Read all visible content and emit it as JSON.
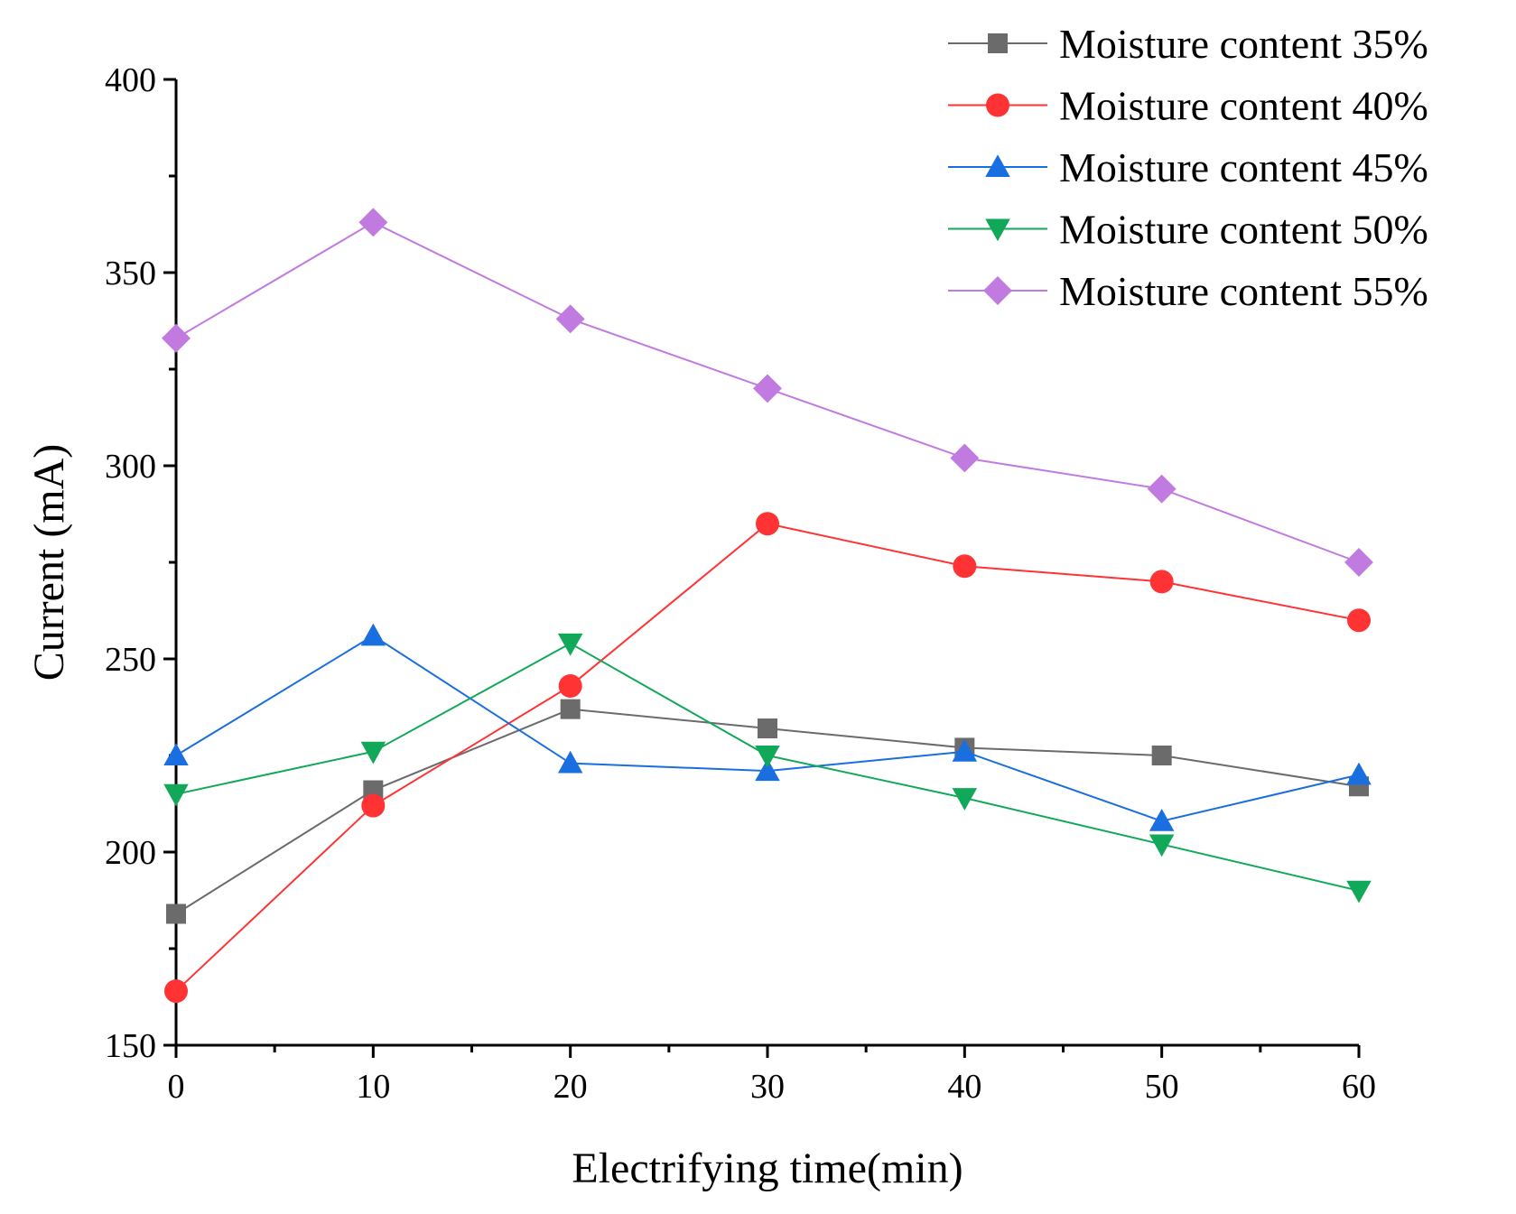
{
  "chart_data": {
    "type": "line",
    "title": "",
    "xlabel": "Electrifying time(min)",
    "ylabel": "Current (mA)",
    "xlim": [
      0,
      60
    ],
    "ylim": [
      150,
      400
    ],
    "xticks": [
      0,
      10,
      20,
      30,
      40,
      50,
      60
    ],
    "yticks": [
      150,
      200,
      250,
      300,
      350,
      400
    ],
    "xtick_labels": [
      "0",
      "10",
      "20",
      "30",
      "40",
      "50",
      "60"
    ],
    "ytick_labels": [
      "150",
      "200",
      "250",
      "300",
      "350",
      "400"
    ],
    "x": [
      0,
      10,
      20,
      30,
      40,
      50,
      60
    ],
    "grid": false,
    "legend_position": "top-right",
    "series": [
      {
        "name": "Moisture content 35%",
        "color": "#6b6b6b",
        "marker": "square",
        "values": [
          184,
          216,
          237,
          232,
          227,
          225,
          217
        ]
      },
      {
        "name": "Moisture content 40%",
        "color": "#ff3333",
        "marker": "circle",
        "values": [
          164,
          212,
          243,
          285,
          274,
          270,
          260
        ]
      },
      {
        "name": "Moisture content 45%",
        "color": "#1a6fe0",
        "marker": "triangle-up",
        "values": [
          225,
          256,
          223,
          221,
          226,
          208,
          220
        ]
      },
      {
        "name": "Moisture content 50%",
        "color": "#12a85a",
        "marker": "triangle-down",
        "values": [
          215,
          226,
          254,
          225,
          214,
          202,
          190
        ]
      },
      {
        "name": "Moisture content 55%",
        "color": "#c07ae0",
        "marker": "diamond",
        "values": [
          333,
          363,
          338,
          320,
          302,
          294,
          275
        ]
      }
    ]
  }
}
